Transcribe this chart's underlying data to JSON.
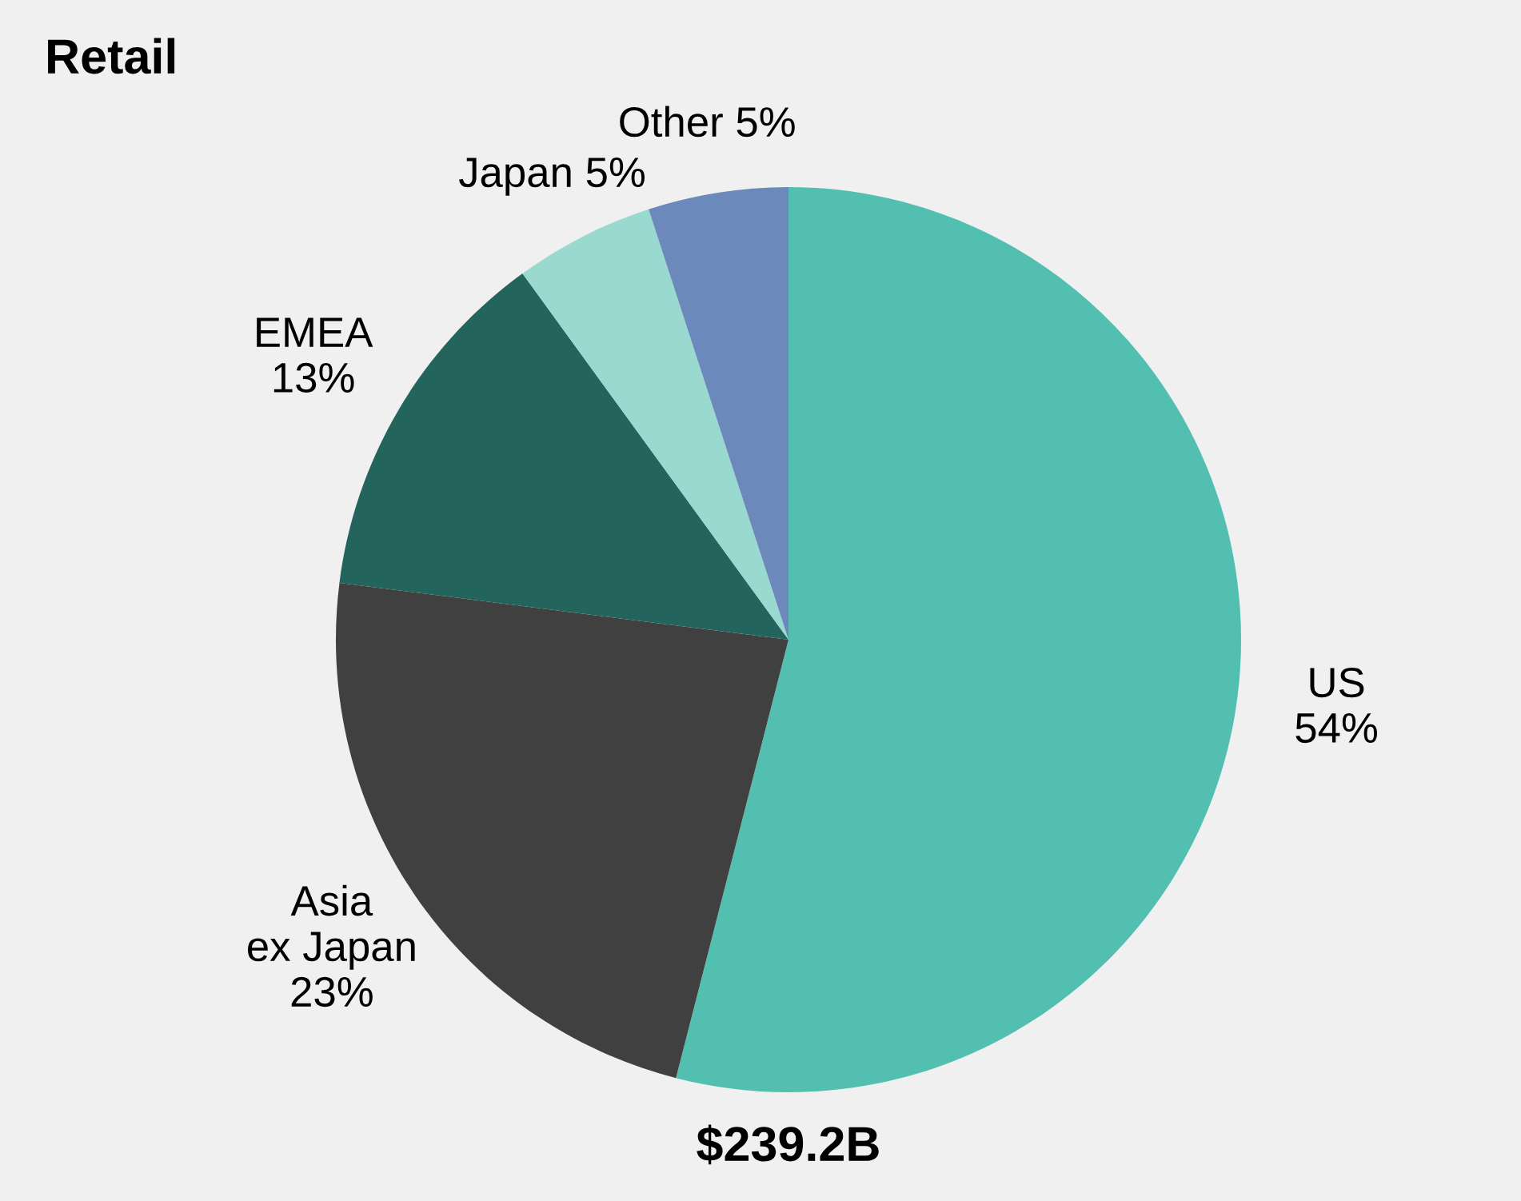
{
  "chart_data": {
    "type": "pie",
    "title": "Retail",
    "categories": [
      "US",
      "Asia ex Japan",
      "EMEA",
      "Japan",
      "Other"
    ],
    "values": [
      54,
      23,
      13,
      5,
      5
    ],
    "colors": [
      "#52bfb0",
      "#404040",
      "#23645c",
      "#9ad9d0",
      "#6b8abb"
    ],
    "value_labels": [
      "54%",
      "23%",
      "13%",
      "5%",
      "5%"
    ],
    "annotations": [
      "$239.2B"
    ]
  }
}
